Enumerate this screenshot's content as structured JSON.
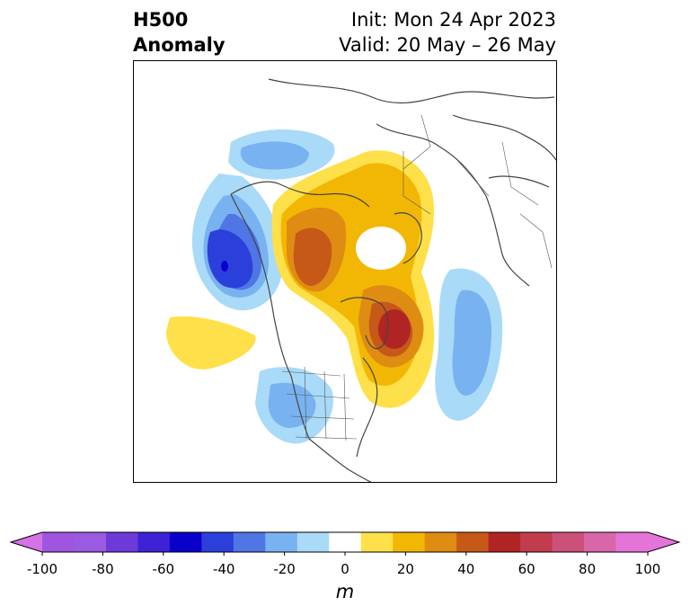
{
  "title": {
    "left_line1": "H500",
    "left_line2": "Anomaly",
    "right_line1": "Init: Mon 24 Apr 2023",
    "right_line2": "Valid: 20 May – 26 May"
  },
  "map": {
    "projection": "polar stereographic (Northern Hemisphere)",
    "field": "500 hPa geopotential height anomaly",
    "border_color": "#444444"
  },
  "colorbar": {
    "unit": "m",
    "extend": "both",
    "tick_labels": [
      "-100",
      "-80",
      "-60",
      "-40",
      "-20",
      "0",
      "20",
      "40",
      "60",
      "80",
      "100"
    ],
    "bins": [
      {
        "range": "< -100",
        "color": "#d473e6"
      },
      {
        "range": "-100 to -90",
        "color": "#a055e0"
      },
      {
        "range": "-90 to -80",
        "color": "#9b5ae2"
      },
      {
        "range": "-80 to -70",
        "color": "#6c3ad8"
      },
      {
        "range": "-70 to -60",
        "color": "#3d22d6"
      },
      {
        "range": "-60 to -50",
        "color": "#0a00cc"
      },
      {
        "range": "-50 to -40",
        "color": "#2b40db"
      },
      {
        "range": "-40 to -30",
        "color": "#5075e4"
      },
      {
        "range": "-30 to -20",
        "color": "#79b2f0"
      },
      {
        "range": "-20 to -10",
        "color": "#a9daf7"
      },
      {
        "range": "-10 to 10",
        "color": "#ffffff"
      },
      {
        "range": "10 to 20",
        "color": "#fee04a"
      },
      {
        "range": "20 to 30",
        "color": "#f2b705"
      },
      {
        "range": "30 to 40",
        "color": "#df8c13"
      },
      {
        "range": "40 to 50",
        "color": "#c65818"
      },
      {
        "range": "50 to 60",
        "color": "#b12424"
      },
      {
        "range": "60 to 70",
        "color": "#c23c4e"
      },
      {
        "range": "70 to 80",
        "color": "#cd5079"
      },
      {
        "range": "80 to 90",
        "color": "#d866a8"
      },
      {
        "range": "90 to 100",
        "color": "#e474d8"
      },
      {
        "range": "> 100",
        "color": "#e474d8"
      }
    ]
  }
}
